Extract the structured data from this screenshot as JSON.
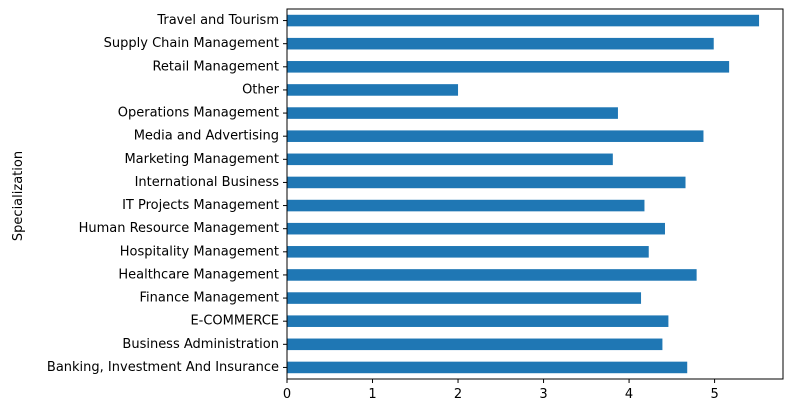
{
  "chart_data": {
    "type": "bar",
    "orientation": "horizontal",
    "ylabel": "Specialization",
    "xlabel": "",
    "categories": [
      "Banking, Investment And Insurance",
      "Business Administration",
      "E-COMMERCE",
      "Finance Management",
      "Healthcare Management",
      "Hospitality Management",
      "Human Resource Management",
      "IT Projects Management",
      "International Business",
      "Marketing Management",
      "Media and Advertising",
      "Operations Management",
      "Other",
      "Retail Management",
      "Supply Chain Management",
      "Travel and Tourism"
    ],
    "values": [
      4.68,
      4.39,
      4.46,
      4.14,
      4.79,
      4.23,
      4.42,
      4.18,
      4.66,
      3.81,
      4.87,
      3.87,
      2.0,
      5.17,
      4.99,
      5.52
    ],
    "xlim": [
      0,
      5.8
    ],
    "xticks": [
      "0",
      "1",
      "2",
      "3",
      "4",
      "5"
    ],
    "grid": false,
    "colors": {
      "bar": "#1f77b4",
      "axis": "#000000"
    }
  }
}
